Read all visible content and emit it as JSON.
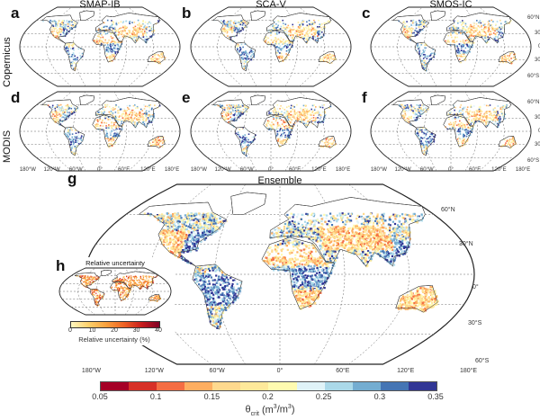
{
  "panels": [
    {
      "letter": "a",
      "title": "SMAP-IB",
      "seed": 11,
      "bias": 0
    },
    {
      "letter": "b",
      "title": "SCA-V",
      "seed": 23,
      "bias": 1
    },
    {
      "letter": "c",
      "title": "SMOS-IC",
      "seed": 37,
      "bias": 0.5
    },
    {
      "letter": "d",
      "title": "",
      "seed": 41,
      "bias": -1
    },
    {
      "letter": "e",
      "title": "",
      "seed": 53,
      "bias": -0.5
    },
    {
      "letter": "f",
      "title": "",
      "seed": 67,
      "bias": 0
    }
  ],
  "row_labels": [
    "Copernicus",
    "MODIS"
  ],
  "lon_labels": [
    "180°W",
    "120°W",
    "60°W",
    "0°",
    "60°E",
    "120°E",
    "180°E"
  ],
  "lat_labels": [
    "60°N",
    "30°N",
    "0°",
    "30°S",
    "60°S"
  ],
  "ensemble": {
    "letter": "g",
    "title": "Ensemble"
  },
  "inset": {
    "letter": "h",
    "title": "Relative uncertainty",
    "colorbar_ticks": [
      "0",
      "10",
      "20",
      "30",
      "40"
    ],
    "colorbar_label": "Relative uncertainty (%)",
    "colors": [
      "#fff7c0",
      "#fdd06a",
      "#f9a03c",
      "#ee6224",
      "#c81d1d",
      "#800026"
    ]
  },
  "colorbar": {
    "ticks": [
      "0.05",
      "0.1",
      "0.15",
      "0.2",
      "0.25",
      "0.3",
      "0.35"
    ],
    "label_main": "θ",
    "label_sub": "crit",
    "label_units": "(m",
    "label_sup1": "3",
    "label_mid": "/m",
    "label_sup2": "3",
    "label_end": ")",
    "range": [
      0.05,
      0.35
    ],
    "step": 0.025,
    "colors": [
      "#a50026",
      "#d73027",
      "#f46d43",
      "#fdae61",
      "#fed98e",
      "#fee99a",
      "#fffbb0",
      "#e0f3f8",
      "#abd9e9",
      "#74add1",
      "#4575b4",
      "#313695"
    ]
  }
}
